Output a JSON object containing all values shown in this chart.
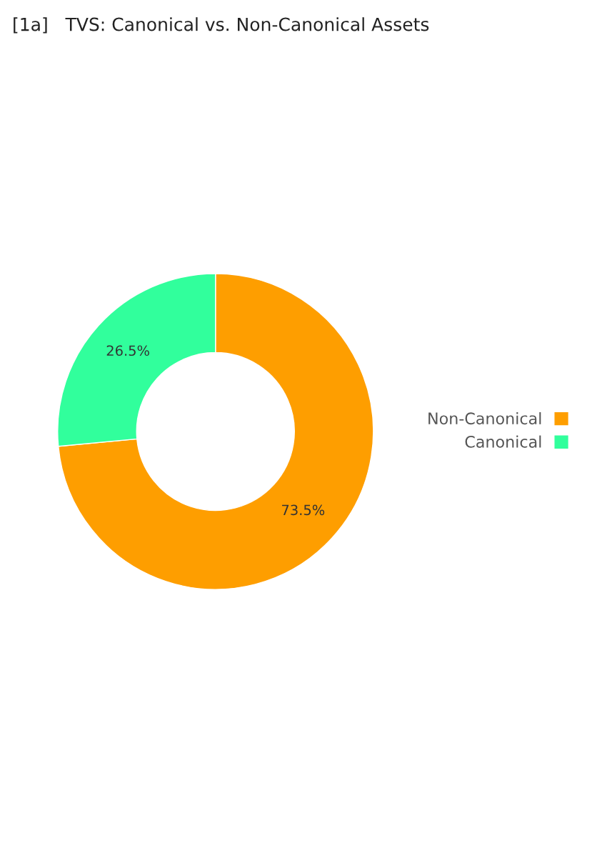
{
  "chart_data": {
    "type": "donut",
    "title": "[1a]   TVS: Canonical vs. Non-Canonical Assets",
    "categories": [
      "Non-Canonical",
      "Canonical"
    ],
    "values": [
      73.5,
      26.5
    ],
    "colors": [
      "#fe9e00",
      "#31ff9c"
    ],
    "value_labels": [
      "73.5%",
      "26.5%"
    ],
    "legend": "right"
  }
}
